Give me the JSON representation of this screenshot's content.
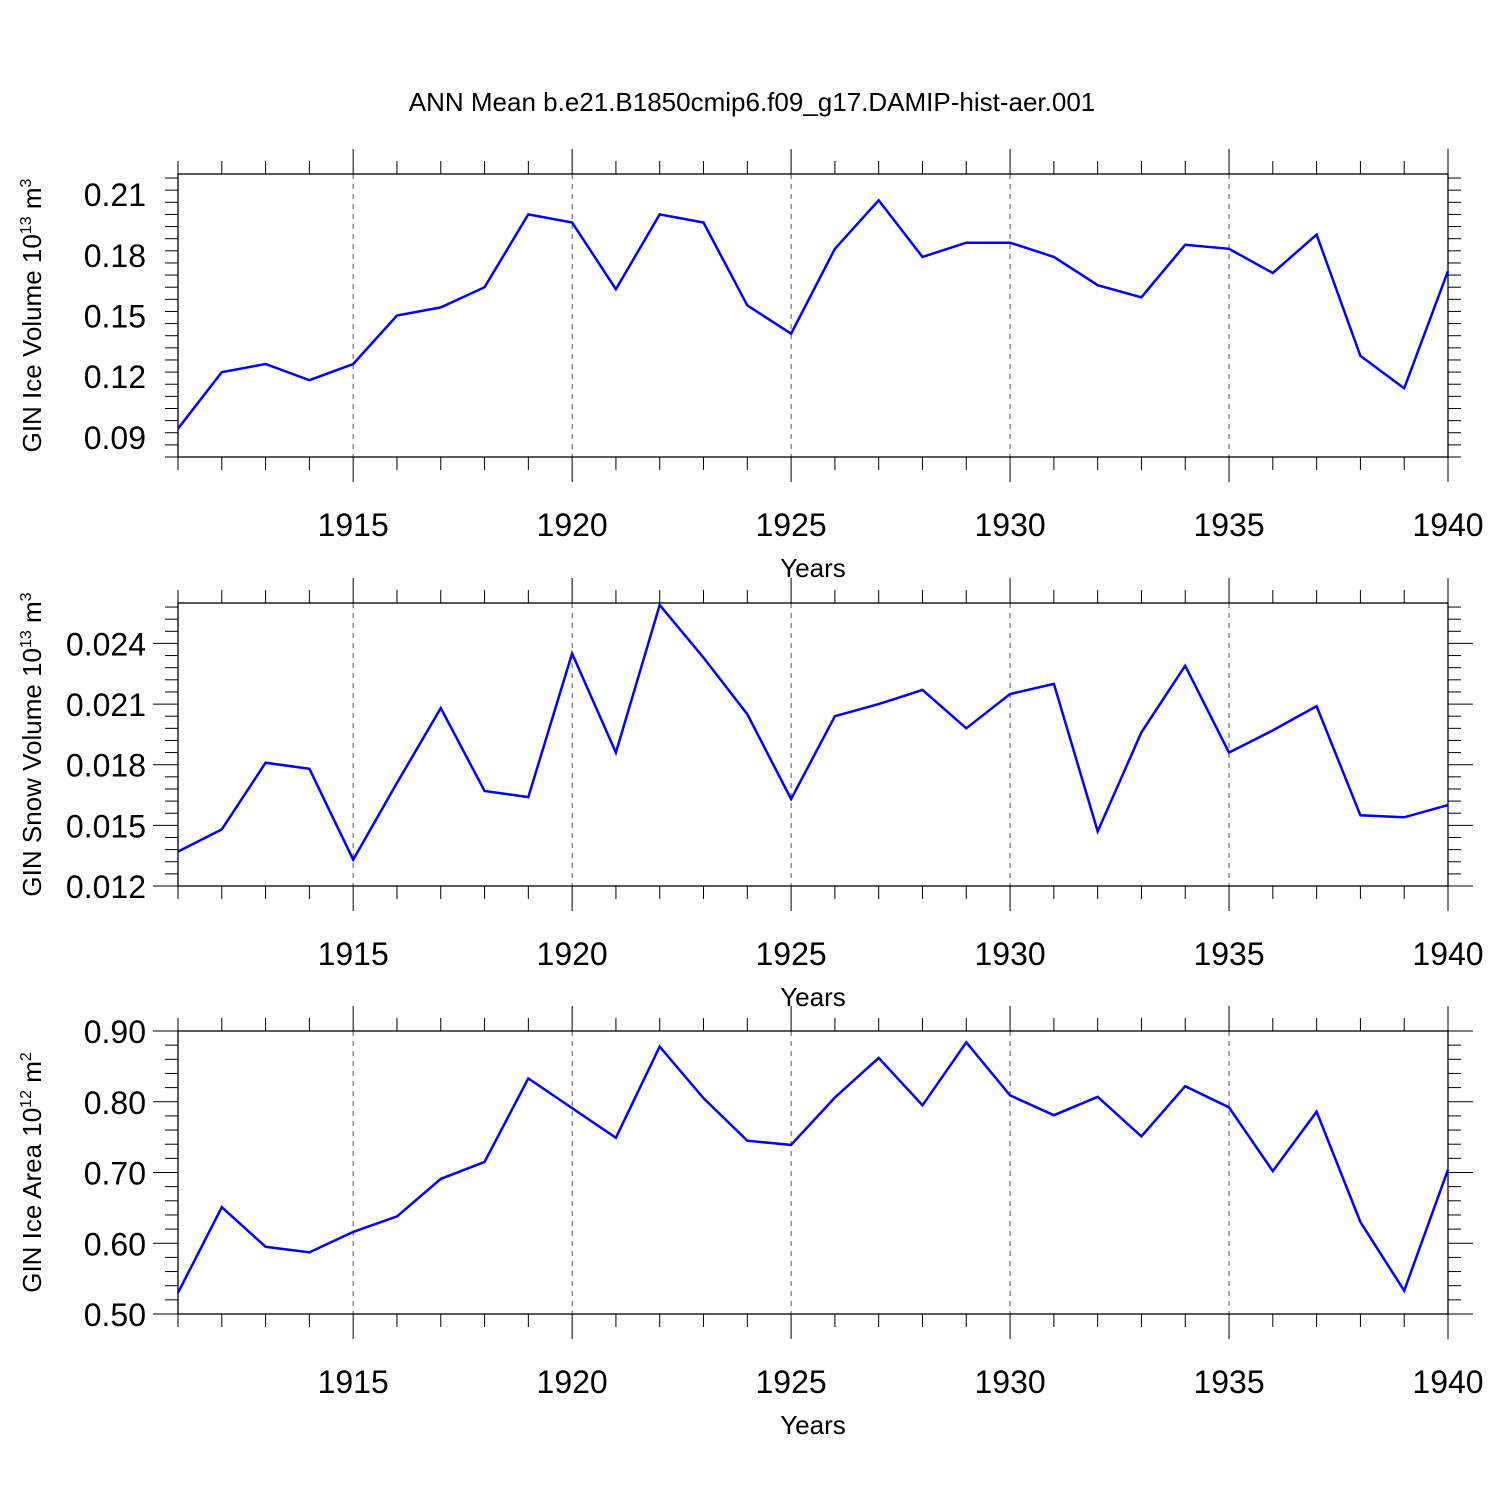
{
  "figure": {
    "title": "ANN Mean b.e21.B1850cmip6.f09_g17.DAMIP-hist-aer.001",
    "line_color": "#0000ff"
  },
  "chart_data": [
    {
      "type": "line",
      "ylabel_main": "GIN Ice Volume 10",
      "ylabel_exp": "13",
      "ylabel_unit": " m",
      "ylabel_unit_exp": "3",
      "xlabel": "Years",
      "xlim": [
        1911,
        1940
      ],
      "ylim": [
        0.08,
        0.22
      ],
      "yticks": [
        0.09,
        0.12,
        0.15,
        0.18,
        0.21
      ],
      "ytick_labels": [
        "0.09",
        "0.12",
        "0.15",
        "0.18",
        "0.21"
      ],
      "xticks": [
        1915,
        1920,
        1925,
        1930,
        1935,
        1940
      ],
      "xtick_labels": [
        "1915",
        "1920",
        "1925",
        "1930",
        "1935",
        "1940"
      ],
      "grid": "dashed vertical at major x ticks",
      "x": [
        1911,
        1912,
        1913,
        1914,
        1915,
        1916,
        1917,
        1918,
        1919,
        1920,
        1921,
        1922,
        1923,
        1924,
        1925,
        1926,
        1927,
        1928,
        1929,
        1930,
        1931,
        1932,
        1933,
        1934,
        1935,
        1936,
        1937,
        1938,
        1939,
        1940
      ],
      "series": [
        {
          "values": [
            0.094,
            0.122,
            0.126,
            0.118,
            0.126,
            0.15,
            0.154,
            0.164,
            0.2,
            0.196,
            0.163,
            0.2,
            0.196,
            0.155,
            0.141,
            0.183,
            0.207,
            0.179,
            0.186,
            0.186,
            0.179,
            0.165,
            0.159,
            0.185,
            0.183,
            0.171,
            0.19,
            0.13,
            0.114,
            0.172
          ]
        }
      ]
    },
    {
      "type": "line",
      "ylabel_main": "GIN Snow Volume 10",
      "ylabel_exp": "13",
      "ylabel_unit": " m",
      "ylabel_unit_exp": "3",
      "xlabel": "Years",
      "xlim": [
        1911,
        1940
      ],
      "ylim": [
        0.012,
        0.026
      ],
      "yticks": [
        0.012,
        0.015,
        0.018,
        0.021,
        0.024
      ],
      "ytick_labels": [
        "0.012",
        "0.015",
        "0.018",
        "0.021",
        "0.024"
      ],
      "xticks": [
        1915,
        1920,
        1925,
        1930,
        1935,
        1940
      ],
      "xtick_labels": [
        "1915",
        "1920",
        "1925",
        "1930",
        "1935",
        "1940"
      ],
      "grid": "dashed vertical at major x ticks",
      "x": [
        1911,
        1912,
        1913,
        1914,
        1915,
        1916,
        1917,
        1918,
        1919,
        1920,
        1921,
        1922,
        1923,
        1924,
        1925,
        1926,
        1927,
        1928,
        1929,
        1930,
        1931,
        1932,
        1933,
        1934,
        1935,
        1936,
        1937,
        1938,
        1939,
        1940
      ],
      "series": [
        {
          "values": [
            0.0137,
            0.0148,
            0.0181,
            0.0178,
            0.0133,
            0.0171,
            0.0208,
            0.0167,
            0.0164,
            0.0235,
            0.0186,
            0.0259,
            0.0233,
            0.0205,
            0.0163,
            0.0204,
            0.021,
            0.0217,
            0.0198,
            0.0215,
            0.022,
            0.0147,
            0.0196,
            0.0229,
            0.0186,
            0.0197,
            0.0209,
            0.0155,
            0.0154,
            0.016
          ]
        }
      ]
    },
    {
      "type": "line",
      "ylabel_main": "GIN Ice Area 10",
      "ylabel_exp": "12",
      "ylabel_unit": " m",
      "ylabel_unit_exp": "2",
      "xlabel": "Years",
      "xlim": [
        1911,
        1940
      ],
      "ylim": [
        0.5,
        0.9
      ],
      "yticks": [
        0.5,
        0.6,
        0.7,
        0.8,
        0.9
      ],
      "ytick_labels": [
        "0.50",
        "0.60",
        "0.70",
        "0.80",
        "0.90"
      ],
      "xticks": [
        1915,
        1920,
        1925,
        1930,
        1935,
        1940
      ],
      "xtick_labels": [
        "1915",
        "1920",
        "1925",
        "1930",
        "1935",
        "1940"
      ],
      "grid": "dashed vertical at major x ticks",
      "x": [
        1911,
        1912,
        1913,
        1914,
        1915,
        1916,
        1917,
        1918,
        1919,
        1920,
        1921,
        1922,
        1923,
        1924,
        1925,
        1926,
        1927,
        1928,
        1929,
        1930,
        1931,
        1932,
        1933,
        1934,
        1935,
        1936,
        1937,
        1938,
        1939,
        1940
      ],
      "series": [
        {
          "values": [
            0.53,
            0.651,
            0.595,
            0.587,
            0.616,
            0.638,
            0.691,
            0.715,
            0.833,
            0.791,
            0.749,
            0.878,
            0.805,
            0.745,
            0.739,
            0.806,
            0.862,
            0.795,
            0.884,
            0.809,
            0.781,
            0.807,
            0.751,
            0.822,
            0.792,
            0.702,
            0.786,
            0.63,
            0.533,
            0.704
          ]
        }
      ]
    }
  ]
}
